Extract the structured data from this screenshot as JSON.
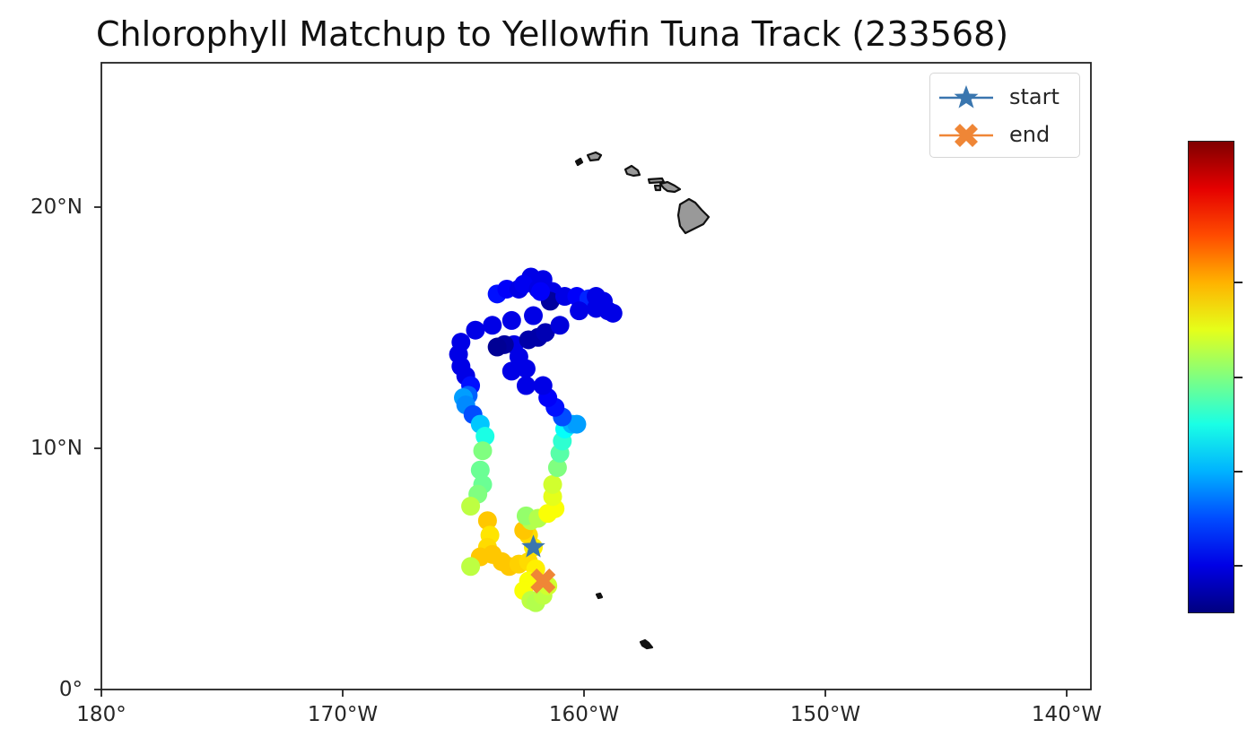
{
  "chart_data": {
    "type": "scatter",
    "title": "Chlorophyll Matchup to Yellowfin Tuna Track (233568)",
    "xlabel": "",
    "ylabel": "",
    "projection": "PlateCarree map",
    "xlim": [
      -180,
      -139
    ],
    "ylim": [
      0,
      26
    ],
    "x_ticks": [
      {
        "value": -180,
        "label": "180°"
      },
      {
        "value": -170,
        "label": "170°W"
      },
      {
        "value": -160,
        "label": "160°W"
      },
      {
        "value": -150,
        "label": "150°W"
      },
      {
        "value": -140,
        "label": "140°W"
      }
    ],
    "y_ticks": [
      {
        "value": 0,
        "label": "0°"
      },
      {
        "value": 10,
        "label": "10°N"
      },
      {
        "value": 20,
        "label": "20°N"
      }
    ],
    "grid": false,
    "colormap": "jet",
    "colorbar": {
      "position": "right",
      "tick_positions": [
        0.1,
        0.3,
        0.5,
        0.7
      ],
      "tick_labels": []
    },
    "legend": {
      "position": "upper right",
      "entries": [
        {
          "label": "start",
          "marker": "star",
          "color": "#3a76af"
        },
        {
          "label": "end",
          "marker": "X",
          "color": "#ef8636"
        }
      ]
    },
    "start": {
      "lon": -162.1,
      "lat": 5.9
    },
    "end": {
      "lon": -161.7,
      "lat": 4.5
    },
    "series": [
      {
        "name": "chlorophyll matchup",
        "points": [
          {
            "lon": -162.1,
            "lat": 5.9,
            "c": 0.64
          },
          {
            "lon": -162.3,
            "lat": 6.4,
            "c": 0.66
          },
          {
            "lon": -162.5,
            "lat": 6.6,
            "c": 0.68
          },
          {
            "lon": -162.2,
            "lat": 7.0,
            "c": 0.55
          },
          {
            "lon": -162.4,
            "lat": 7.2,
            "c": 0.52
          },
          {
            "lon": -161.9,
            "lat": 7.1,
            "c": 0.55
          },
          {
            "lon": -161.5,
            "lat": 7.3,
            "c": 0.62
          },
          {
            "lon": -161.2,
            "lat": 7.5,
            "c": 0.62
          },
          {
            "lon": -161.3,
            "lat": 8.0,
            "c": 0.6
          },
          {
            "lon": -161.3,
            "lat": 8.5,
            "c": 0.58
          },
          {
            "lon": -161.1,
            "lat": 9.2,
            "c": 0.5
          },
          {
            "lon": -161.0,
            "lat": 9.8,
            "c": 0.46
          },
          {
            "lon": -160.9,
            "lat": 10.3,
            "c": 0.42
          },
          {
            "lon": -160.8,
            "lat": 10.8,
            "c": 0.38
          },
          {
            "lon": -160.5,
            "lat": 11.0,
            "c": 0.3
          },
          {
            "lon": -160.3,
            "lat": 11.0,
            "c": 0.28
          },
          {
            "lon": -160.9,
            "lat": 11.3,
            "c": 0.2
          },
          {
            "lon": -161.2,
            "lat": 11.7,
            "c": 0.14
          },
          {
            "lon": -161.5,
            "lat": 12.1,
            "c": 0.12
          },
          {
            "lon": -161.7,
            "lat": 12.6,
            "c": 0.1
          },
          {
            "lon": -162.4,
            "lat": 12.6,
            "c": 0.1
          },
          {
            "lon": -163.0,
            "lat": 13.2,
            "c": 0.1
          },
          {
            "lon": -162.4,
            "lat": 13.3,
            "c": 0.1
          },
          {
            "lon": -162.7,
            "lat": 13.8,
            "c": 0.1
          },
          {
            "lon": -162.9,
            "lat": 14.3,
            "c": 0.1
          },
          {
            "lon": -163.3,
            "lat": 14.3,
            "c": 0.03
          },
          {
            "lon": -163.6,
            "lat": 14.2,
            "c": 0.02
          },
          {
            "lon": -162.3,
            "lat": 14.5,
            "c": 0.04
          },
          {
            "lon": -161.9,
            "lat": 14.6,
            "c": 0.04
          },
          {
            "lon": -161.6,
            "lat": 14.8,
            "c": 0.05
          },
          {
            "lon": -161.0,
            "lat": 15.1,
            "c": 0.09
          },
          {
            "lon": -162.1,
            "lat": 15.5,
            "c": 0.1
          },
          {
            "lon": -163.0,
            "lat": 15.3,
            "c": 0.1
          },
          {
            "lon": -163.8,
            "lat": 15.1,
            "c": 0.1
          },
          {
            "lon": -164.5,
            "lat": 14.9,
            "c": 0.1
          },
          {
            "lon": -165.1,
            "lat": 14.4,
            "c": 0.1
          },
          {
            "lon": -165.2,
            "lat": 13.9,
            "c": 0.1
          },
          {
            "lon": -165.1,
            "lat": 13.4,
            "c": 0.1
          },
          {
            "lon": -164.9,
            "lat": 13.0,
            "c": 0.1
          },
          {
            "lon": -164.7,
            "lat": 12.6,
            "c": 0.14
          },
          {
            "lon": -164.8,
            "lat": 12.2,
            "c": 0.22
          },
          {
            "lon": -165.0,
            "lat": 12.1,
            "c": 0.28
          },
          {
            "lon": -164.9,
            "lat": 11.8,
            "c": 0.26
          },
          {
            "lon": -164.6,
            "lat": 11.4,
            "c": 0.2
          },
          {
            "lon": -164.3,
            "lat": 11.0,
            "c": 0.32
          },
          {
            "lon": -164.1,
            "lat": 10.5,
            "c": 0.4
          },
          {
            "lon": -164.2,
            "lat": 9.9,
            "c": 0.5
          },
          {
            "lon": -164.3,
            "lat": 9.1,
            "c": 0.48
          },
          {
            "lon": -164.2,
            "lat": 8.5,
            "c": 0.48
          },
          {
            "lon": -164.4,
            "lat": 8.1,
            "c": 0.5
          },
          {
            "lon": -164.7,
            "lat": 7.6,
            "c": 0.56
          },
          {
            "lon": -164.0,
            "lat": 7.0,
            "c": 0.68
          },
          {
            "lon": -163.9,
            "lat": 6.4,
            "c": 0.65
          },
          {
            "lon": -164.0,
            "lat": 5.9,
            "c": 0.66
          },
          {
            "lon": -164.3,
            "lat": 5.5,
            "c": 0.68
          },
          {
            "lon": -164.7,
            "lat": 5.1,
            "c": 0.56
          },
          {
            "lon": -163.8,
            "lat": 5.6,
            "c": 0.68
          },
          {
            "lon": -163.4,
            "lat": 5.3,
            "c": 0.68
          },
          {
            "lon": -163.1,
            "lat": 5.1,
            "c": 0.68
          },
          {
            "lon": -162.7,
            "lat": 5.2,
            "c": 0.67
          },
          {
            "lon": -162.3,
            "lat": 5.3,
            "c": 0.66
          },
          {
            "lon": -162.0,
            "lat": 5.0,
            "c": 0.64
          },
          {
            "lon": -162.3,
            "lat": 4.5,
            "c": 0.62
          },
          {
            "lon": -162.5,
            "lat": 4.1,
            "c": 0.62
          },
          {
            "lon": -162.2,
            "lat": 3.7,
            "c": 0.56
          },
          {
            "lon": -162.0,
            "lat": 3.6,
            "c": 0.55
          },
          {
            "lon": -161.7,
            "lat": 3.9,
            "c": 0.56
          },
          {
            "lon": -161.5,
            "lat": 4.3,
            "c": 0.58
          },
          {
            "lon": -163.6,
            "lat": 16.4,
            "c": 0.14
          },
          {
            "lon": -163.2,
            "lat": 16.6,
            "c": 0.12
          },
          {
            "lon": -162.7,
            "lat": 16.6,
            "c": 0.1
          },
          {
            "lon": -162.2,
            "lat": 17.1,
            "c": 0.1
          },
          {
            "lon": -161.7,
            "lat": 17.0,
            "c": 0.1
          },
          {
            "lon": -162.5,
            "lat": 16.8,
            "c": 0.11
          },
          {
            "lon": -161.9,
            "lat": 16.6,
            "c": 0.1
          },
          {
            "lon": -161.3,
            "lat": 16.5,
            "c": 0.1
          },
          {
            "lon": -161.4,
            "lat": 16.1,
            "c": 0.03
          },
          {
            "lon": -160.8,
            "lat": 16.3,
            "c": 0.1
          },
          {
            "lon": -160.3,
            "lat": 16.3,
            "c": 0.12
          },
          {
            "lon": -159.8,
            "lat": 16.2,
            "c": 0.16
          },
          {
            "lon": -159.5,
            "lat": 16.3,
            "c": 0.1
          },
          {
            "lon": -159.2,
            "lat": 16.1,
            "c": 0.1
          },
          {
            "lon": -159.0,
            "lat": 15.7,
            "c": 0.1
          },
          {
            "lon": -158.8,
            "lat": 15.6,
            "c": 0.1
          },
          {
            "lon": -159.5,
            "lat": 15.8,
            "c": 0.1
          },
          {
            "lon": -160.2,
            "lat": 15.7,
            "c": 0.1
          },
          {
            "lon": -161.8,
            "lat": 16.5,
            "c": 0.12
          }
        ]
      }
    ],
    "land": {
      "fill": "#999999",
      "stroke": "#111111",
      "features": [
        {
          "name": "Hawaii (Big Island)",
          "lon": -155.5,
          "lat": 19.6
        },
        {
          "name": "Maui",
          "lon": -156.3,
          "lat": 20.8
        },
        {
          "name": "Molokai",
          "lon": -157.0,
          "lat": 21.1
        },
        {
          "name": "Oahu",
          "lon": -158.0,
          "lat": 21.4
        },
        {
          "name": "Kauai",
          "lon": -159.5,
          "lat": 22.0
        },
        {
          "name": "Niihau",
          "lon": -160.1,
          "lat": 21.9
        },
        {
          "name": "Jarvis/Palmyra islet",
          "lon": -159.4,
          "lat": 3.9
        },
        {
          "name": "Kiritimati islet",
          "lon": -157.4,
          "lat": 1.9
        }
      ]
    }
  },
  "colors": {
    "start": "#3a76af",
    "end": "#ef8636",
    "axes": "#222222"
  }
}
